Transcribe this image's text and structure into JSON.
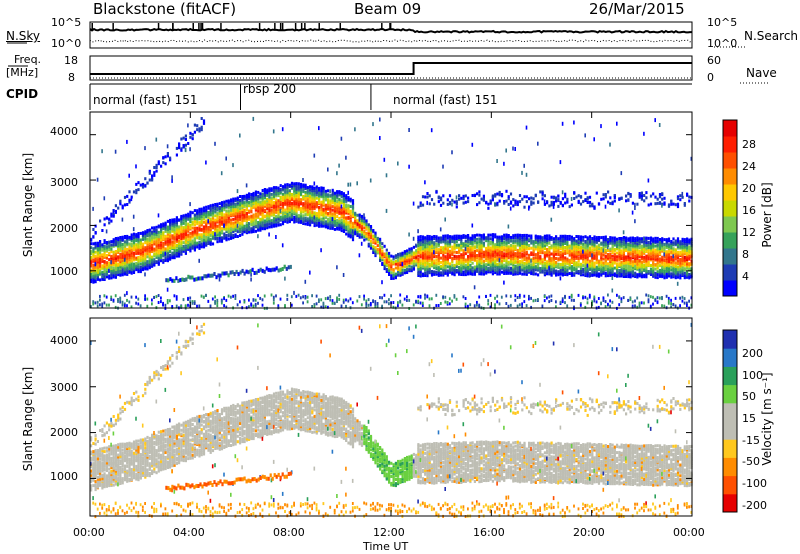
{
  "header": {
    "station": "Blackstone (fitACF)",
    "beam": "Beam 09",
    "date": "26/Mar/2015"
  },
  "noise_panel": {
    "left_label": "N.Sky",
    "right_label": "N.Search",
    "ticks_left": [
      "10^5",
      "10^0"
    ],
    "ticks_right": [
      "10^5",
      "10^0"
    ]
  },
  "freq_panel": {
    "left_label_1": "Freq.",
    "left_label_2": "[MHz]",
    "left_ticks": [
      "18",
      "8"
    ],
    "right_ticks": [
      "60",
      "0"
    ],
    "right_label": "Nave"
  },
  "cpid_panel": {
    "label": "CPID",
    "segments": [
      {
        "name": "normal (fast) 151",
        "start_hour": 0,
        "end_hour": 6
      },
      {
        "name": "rbsp 200",
        "start_hour": 6,
        "end_hour": 11.2
      },
      {
        "name": "normal (fast) 151",
        "start_hour": 11.2,
        "end_hour": 24
      }
    ]
  },
  "chart_data": [
    {
      "type": "heatmap",
      "panel": "power",
      "ylabel": "Slant Range [km]",
      "xlabel": "Time UT",
      "y_ticks": [
        "4000",
        "3000",
        "2000",
        "1000"
      ],
      "ylim": [
        180,
        4500
      ],
      "xlim": [
        0,
        24
      ],
      "colorbar_label": "Power [dB]",
      "colorbar_ticks": [
        "28",
        "24",
        "20",
        "16",
        "12",
        "8",
        "4"
      ],
      "colorbar_colors": [
        "#0000ff",
        "#1e3cb4",
        "#32768c",
        "#36a25a",
        "#7ec850",
        "#c8d800",
        "#ffc800",
        "#ff8c00",
        "#ff5000",
        "#ff1e00",
        "#e60000"
      ],
      "features": [
        {
          "name": "main band",
          "times": [
            0,
            2,
            4,
            6,
            8,
            10,
            11,
            12,
            13,
            16,
            20,
            24
          ],
          "center_km": [
            1200,
            1450,
            1900,
            2250,
            2550,
            2350,
            1900,
            1100,
            1350,
            1400,
            1350,
            1300
          ]
        }
      ]
    },
    {
      "type": "heatmap",
      "panel": "velocity",
      "ylabel": "Slant Range [km]",
      "xlabel": "Time UT",
      "y_ticks": [
        "4000",
        "3000",
        "2000",
        "1000"
      ],
      "ylim": [
        180,
        4500
      ],
      "xlim": [
        0,
        24
      ],
      "colorbar_label": "Velocity [m s⁻¹]",
      "colorbar_ticks": [
        "200",
        "100",
        "50",
        "15",
        "-15",
        "-50",
        "-100",
        "-200"
      ],
      "colorbar_colors": [
        "#2030b0",
        "#2878c8",
        "#2aa05a",
        "#6ad040",
        "#bebeb4",
        "#bebeb4",
        "#ffc81e",
        "#ff8c00",
        "#ff5000",
        "#e60000"
      ]
    }
  ],
  "x_ticks": [
    "00:00",
    "04:00",
    "08:00",
    "12:00",
    "16:00",
    "20:00",
    "00:00"
  ],
  "x_title": "Time UT"
}
